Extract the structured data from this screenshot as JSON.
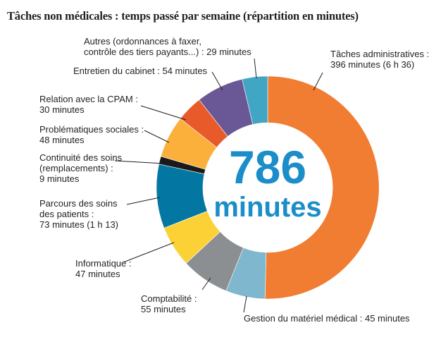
{
  "chart_data": {
    "type": "pie",
    "title": "Tâches non médicales : temps passé par semaine (répartition en minutes)",
    "center_value": "786",
    "center_unit": "minutes",
    "slices": [
      {
        "label_lines": [
          "Tâches administratives :",
          "396 minutes (6 h 36)"
        ],
        "value": 396,
        "color": "#f07d32"
      },
      {
        "label_lines": [
          "Gestion du matériel médical : 45 minutes"
        ],
        "value": 45,
        "color": "#7fb7ce"
      },
      {
        "label_lines": [
          "Comptabilité :",
          "55 minutes"
        ],
        "value": 55,
        "color": "#8c8f91"
      },
      {
        "label_lines": [
          "Informatique :",
          "47 minutes"
        ],
        "value": 47,
        "color": "#fcd135"
      },
      {
        "label_lines": [
          "Parcours des soins",
          "des patients :",
          "73 minutes (1 h 13)"
        ],
        "value": 73,
        "color": "#0476a2"
      },
      {
        "label_lines": [
          "Continuité des soins",
          "(remplacements) :",
          "9 minutes"
        ],
        "value": 9,
        "color": "#1a1a1a"
      },
      {
        "label_lines": [
          "Problématiques sociales :",
          "48 minutes"
        ],
        "value": 48,
        "color": "#fbb03b"
      },
      {
        "label_lines": [
          "Relation avec la CPAM :",
          "30 minutes"
        ],
        "value": 30,
        "color": "#e85a2a"
      },
      {
        "label_lines": [
          "Entretien du cabinet : 54 minutes"
        ],
        "value": 54,
        "color": "#6a5896"
      },
      {
        "label_lines": [
          "Autres (ordonnances à faxer,",
          "contrôle des tiers payants...) : 29 minutes"
        ],
        "value": 29,
        "color": "#41a5c4"
      }
    ]
  }
}
